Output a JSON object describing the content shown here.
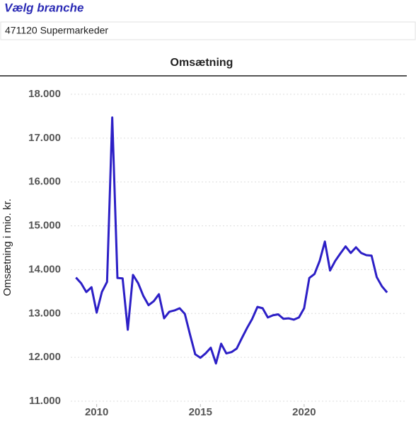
{
  "filter": {
    "label": "Vælg branche",
    "value": "471120 Supermarkeder"
  },
  "chart_data": {
    "type": "line",
    "title": "Omsætning",
    "y_label": "Omsætning i mio. kr.",
    "x": [
      2009,
      2009.25,
      2009.5,
      2009.75,
      2010,
      2010.25,
      2010.5,
      2010.75,
      2011,
      2011.25,
      2011.5,
      2011.75,
      2012,
      2012.25,
      2012.5,
      2012.75,
      2013,
      2013.25,
      2013.5,
      2013.75,
      2014,
      2014.25,
      2014.5,
      2014.75,
      2015,
      2015.25,
      2015.5,
      2015.75,
      2016,
      2016.25,
      2016.5,
      2016.75,
      2017,
      2017.25,
      2017.5,
      2017.75,
      2018,
      2018.25,
      2018.5,
      2018.75,
      2019,
      2019.25,
      2019.5,
      2019.75,
      2020,
      2020.25,
      2020.5,
      2020.75,
      2021,
      2021.25,
      2021.5,
      2021.75,
      2022,
      2022.25,
      2022.5,
      2022.75,
      2023,
      2023.25,
      2023.5,
      2023.75,
      2024
    ],
    "series": [
      {
        "name": "Omsætning",
        "color": "#2c1fc6",
        "values": [
          13820,
          13690,
          13490,
          13600,
          13020,
          13490,
          13720,
          17470,
          13810,
          13800,
          12630,
          13880,
          13690,
          13400,
          13190,
          13280,
          13440,
          12890,
          13040,
          13070,
          13120,
          12990,
          12520,
          12070,
          11990,
          12090,
          12220,
          11860,
          12310,
          12090,
          12120,
          12200,
          12440,
          12670,
          12880,
          13150,
          13120,
          12910,
          12960,
          12980,
          12880,
          12890,
          12860,
          12910,
          13120,
          13810,
          13900,
          14200,
          14640,
          13980,
          14200,
          14370,
          14530,
          14380,
          14510,
          14380,
          14330,
          14320,
          13830,
          13620,
          13480
        ]
      }
    ],
    "xlim": [
      2008.75,
      2024.95
    ],
    "xticks": [
      2010,
      2015,
      2020
    ],
    "ylim": [
      11000,
      18000
    ],
    "yticks": [
      {
        "value": 11000,
        "label": "11.000"
      },
      {
        "value": 12000,
        "label": "12.000"
      },
      {
        "value": 13000,
        "label": "13.000"
      },
      {
        "value": 14000,
        "label": "14.000"
      },
      {
        "value": 15000,
        "label": "15.000"
      },
      {
        "value": 16000,
        "label": "16.000"
      },
      {
        "value": 17000,
        "label": "17.000"
      },
      {
        "value": 18000,
        "label": "18.000"
      }
    ],
    "grid": true
  }
}
